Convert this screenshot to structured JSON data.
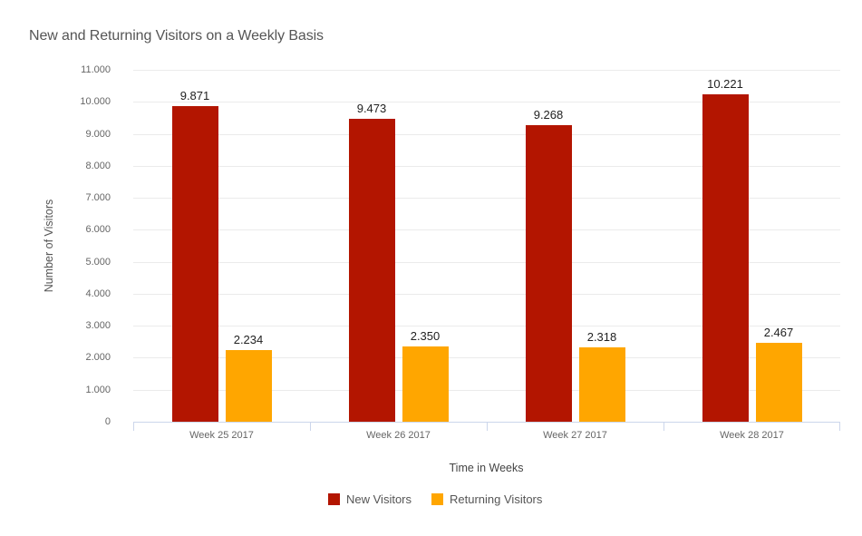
{
  "chart_data": {
    "type": "bar",
    "title": "New and Returning Visitors on a Weekly Basis",
    "xlabel": "Time in Weeks",
    "ylabel": "Number of Visitors",
    "categories": [
      "Week 25 2017",
      "Week 26 2017",
      "Week 27 2017",
      "Week 28 2017"
    ],
    "series": [
      {
        "name": "New Visitors",
        "color": "#b31500",
        "values": [
          9871,
          9473,
          9268,
          10221
        ],
        "labels": [
          "9.871",
          "9.473",
          "9.268",
          "10.221"
        ]
      },
      {
        "name": "Returning Visitors",
        "color": "#ffa600",
        "values": [
          2234,
          2350,
          2318,
          2467
        ],
        "labels": [
          "2.234",
          "2.350",
          "2.318",
          "2.467"
        ]
      }
    ],
    "ylim": [
      0,
      11000
    ],
    "yticks": [
      "0",
      "1.000",
      "2.000",
      "3.000",
      "4.000",
      "5.000",
      "6.000",
      "7.000",
      "8.000",
      "9.000",
      "10.000",
      "11.000"
    ],
    "grid": true,
    "legend_position": "bottom"
  }
}
